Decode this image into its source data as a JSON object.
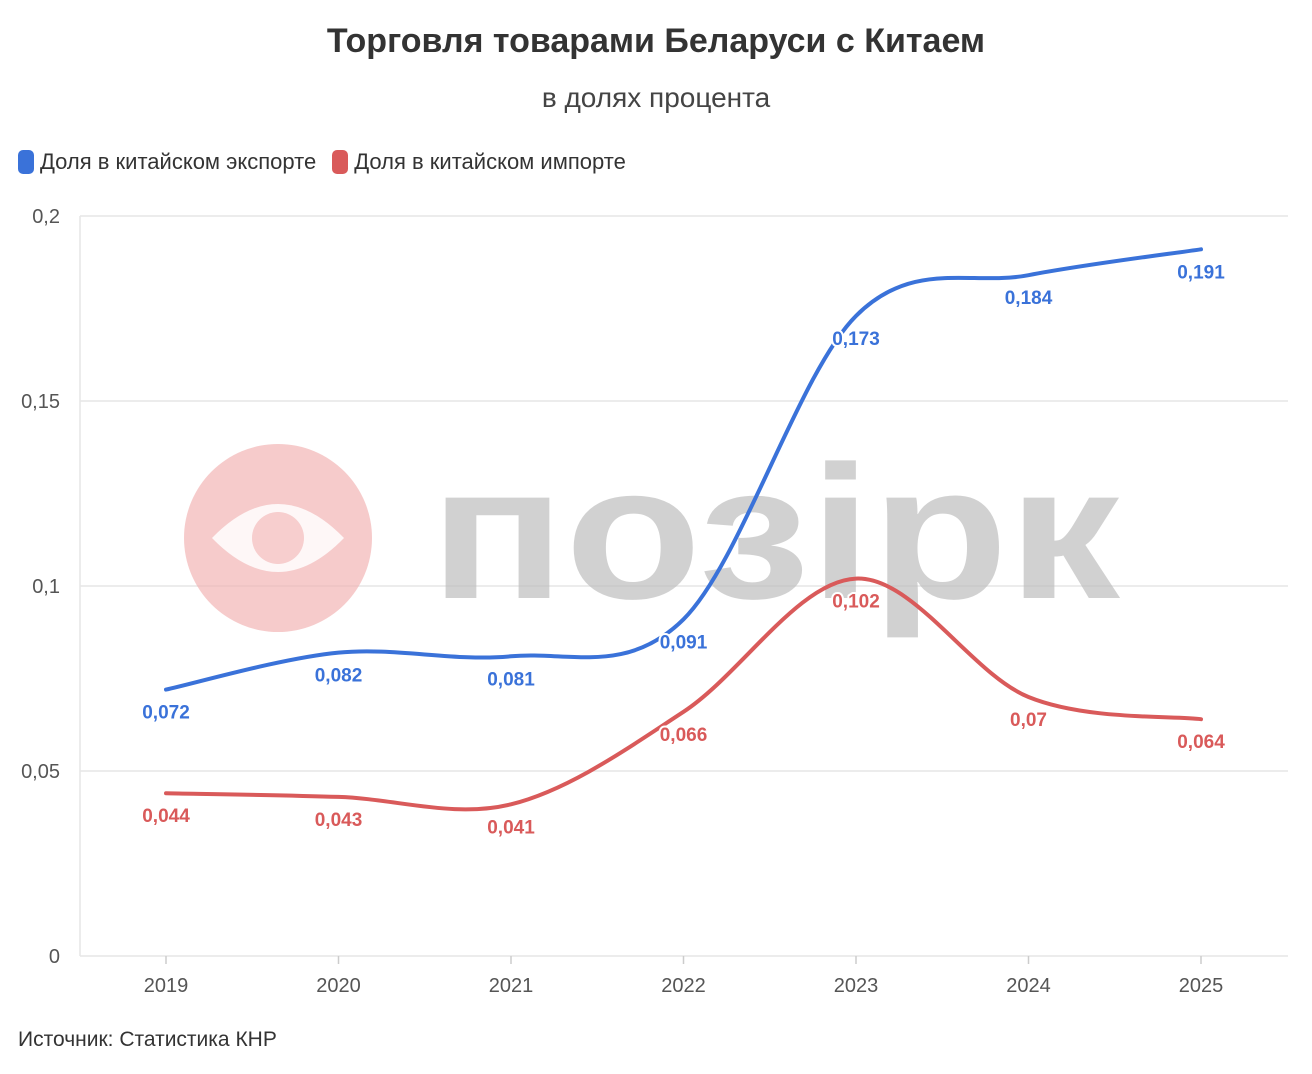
{
  "title": "Торговля товарами Беларуси с Китаем",
  "subtitle": "в долях процента",
  "source": "Источник: Статистика КНР",
  "watermark": "позірк",
  "colors": {
    "export": "#3a72d9",
    "import": "#d95a5a",
    "grid": "#e6e6e6",
    "watermark_text": "#bdbdbd",
    "watermark_logo": "#f2b3b3"
  },
  "chart_data": {
    "type": "line",
    "title": "Торговля товарами Беларуси с Китаем",
    "subtitle": "в долях процента",
    "x": [
      "2019",
      "2020",
      "2021",
      "2022",
      "2023",
      "2024",
      "2025"
    ],
    "ylim": [
      0,
      0.2
    ],
    "yticks": [
      0,
      0.05,
      0.1,
      0.15,
      0.2
    ],
    "ytick_labels": [
      "0",
      "0,05",
      "0,1",
      "0,15",
      "0,2"
    ],
    "grid": true,
    "legend_position": "top-left",
    "series": [
      {
        "name": "Доля в китайском экспорте",
        "color": "#3a72d9",
        "values": [
          0.072,
          0.082,
          0.081,
          0.091,
          0.173,
          0.184,
          0.191
        ],
        "labels": [
          "0,072",
          "0,082",
          "0,081",
          "0,091",
          "0,173",
          "0,184",
          "0,191"
        ]
      },
      {
        "name": "Доля в китайском импорте",
        "color": "#d95a5a",
        "values": [
          0.044,
          0.043,
          0.041,
          0.066,
          0.102,
          0.07,
          0.064
        ],
        "labels": [
          "0,044",
          "0,043",
          "0,041",
          "0,066",
          "0,102",
          "0,07",
          "0,064"
        ]
      }
    ]
  }
}
